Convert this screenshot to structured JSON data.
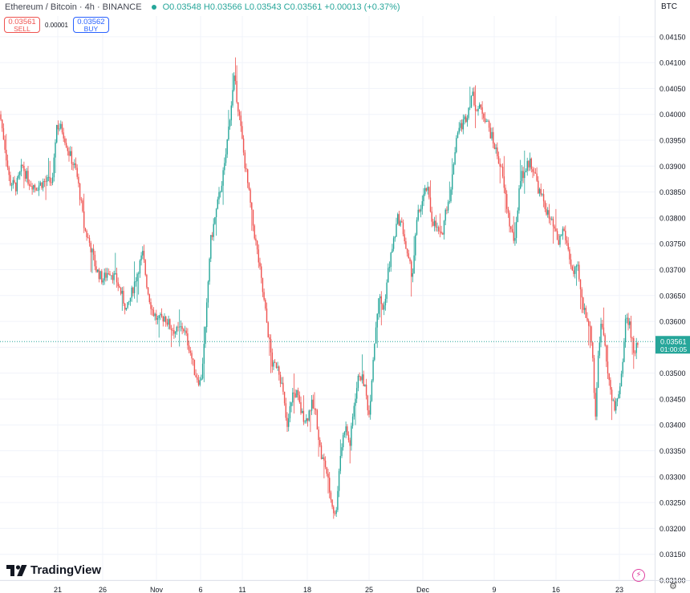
{
  "header": {
    "symbol": "Ethereum / Bitcoin · 4h · BINANCE",
    "ohlc": "O0.03548 H0.03566 L0.03543 C0.03561 +0.00013 (+0.37%)"
  },
  "trade": {
    "sell_price": "0.03561",
    "sell_label": "SELL",
    "spread": "0.00001",
    "buy_price": "0.03562",
    "buy_label": "BUY"
  },
  "currency": "BTC",
  "branding": {
    "logo_text": "TradingView"
  },
  "colors": {
    "up": "#26a69a",
    "down": "#ef5350",
    "last_price_bg": "#26a69a",
    "grid": "#f0f3fa"
  },
  "chart_data": {
    "type": "candlestick",
    "ylim": [
      0.031,
      0.0419
    ],
    "y_ticks": [
      "0.04150",
      "0.04100",
      "0.04050",
      "0.04000",
      "0.03950",
      "0.03900",
      "0.03850",
      "0.03800",
      "0.03750",
      "0.03700",
      "0.03650",
      "0.03600",
      "0.03550",
      "0.03500",
      "0.03450",
      "0.03400",
      "0.03350",
      "0.03300",
      "0.03250",
      "0.03200",
      "0.03150",
      "0.03100"
    ],
    "x_ticks": [
      "21",
      "26",
      "Nov",
      "6",
      "11",
      "18",
      "25",
      "Dec",
      "9",
      "16",
      "23"
    ],
    "last_price": "0.03561",
    "countdown": "01:00:05",
    "grid": true,
    "close_path": [
      [
        0,
        0.04
      ],
      [
        5,
        0.0395
      ],
      [
        12,
        0.0387
      ],
      [
        20,
        0.0386
      ],
      [
        28,
        0.039
      ],
      [
        36,
        0.0387
      ],
      [
        45,
        0.0386
      ],
      [
        55,
        0.0387
      ],
      [
        66,
        0.0387
      ],
      [
        70,
        0.0398
      ],
      [
        78,
        0.0397
      ],
      [
        85,
        0.0393
      ],
      [
        95,
        0.0389
      ],
      [
        100,
        0.0384
      ],
      [
        105,
        0.0378
      ],
      [
        112,
        0.0375
      ],
      [
        120,
        0.037
      ],
      [
        128,
        0.0368
      ],
      [
        136,
        0.037
      ],
      [
        145,
        0.0368
      ],
      [
        152,
        0.0365
      ],
      [
        158,
        0.0362
      ],
      [
        165,
        0.0366
      ],
      [
        172,
        0.037
      ],
      [
        178,
        0.0373
      ],
      [
        184,
        0.0366
      ],
      [
        190,
        0.0362
      ],
      [
        197,
        0.036
      ],
      [
        205,
        0.0361
      ],
      [
        212,
        0.0359
      ],
      [
        220,
        0.0358
      ],
      [
        228,
        0.0359
      ],
      [
        236,
        0.0355
      ],
      [
        243,
        0.035
      ],
      [
        250,
        0.0348
      ],
      [
        256,
        0.0358
      ],
      [
        262,
        0.0375
      ],
      [
        268,
        0.038
      ],
      [
        274,
        0.0385
      ],
      [
        280,
        0.039
      ],
      [
        286,
        0.0399
      ],
      [
        292,
        0.0407
      ],
      [
        298,
        0.04
      ],
      [
        304,
        0.0392
      ],
      [
        310,
        0.0385
      ],
      [
        316,
        0.0378
      ],
      [
        322,
        0.0372
      ],
      [
        328,
        0.0365
      ],
      [
        334,
        0.0358
      ],
      [
        340,
        0.0351
      ],
      [
        346,
        0.0352
      ],
      [
        352,
        0.0347
      ],
      [
        358,
        0.0339
      ],
      [
        364,
        0.0346
      ],
      [
        370,
        0.0346
      ],
      [
        376,
        0.0342
      ],
      [
        382,
        0.0341
      ],
      [
        388,
        0.0344
      ],
      [
        394,
        0.0342
      ],
      [
        400,
        0.0334
      ],
      [
        406,
        0.0332
      ],
      [
        412,
        0.0326
      ],
      [
        418,
        0.0322
      ],
      [
        424,
        0.0334
      ],
      [
        430,
        0.034
      ],
      [
        436,
        0.0336
      ],
      [
        442,
        0.0345
      ],
      [
        448,
        0.035
      ],
      [
        454,
        0.0348
      ],
      [
        460,
        0.0342
      ],
      [
        466,
        0.0355
      ],
      [
        472,
        0.0365
      ],
      [
        478,
        0.0362
      ],
      [
        484,
        0.037
      ],
      [
        490,
        0.0375
      ],
      [
        496,
        0.038
      ],
      [
        502,
        0.0378
      ],
      [
        508,
        0.0372
      ],
      [
        514,
        0.0369
      ],
      [
        520,
        0.038
      ],
      [
        526,
        0.0383
      ],
      [
        532,
        0.0386
      ],
      [
        538,
        0.038
      ],
      [
        544,
        0.0378
      ],
      [
        550,
        0.0376
      ],
      [
        556,
        0.0382
      ],
      [
        562,
        0.0385
      ],
      [
        566,
        0.0392
      ],
      [
        570,
        0.0397
      ],
      [
        576,
        0.0398
      ],
      [
        582,
        0.04
      ],
      [
        588,
        0.0404
      ],
      [
        594,
        0.0401
      ],
      [
        600,
        0.0401
      ],
      [
        606,
        0.0399
      ],
      [
        612,
        0.0396
      ],
      [
        618,
        0.0393
      ],
      [
        624,
        0.039
      ],
      [
        630,
        0.0384
      ],
      [
        636,
        0.0378
      ],
      [
        642,
        0.0375
      ],
      [
        648,
        0.0388
      ],
      [
        654,
        0.0389
      ],
      [
        660,
        0.0391
      ],
      [
        666,
        0.0389
      ],
      [
        672,
        0.0385
      ],
      [
        678,
        0.0383
      ],
      [
        684,
        0.038
      ],
      [
        690,
        0.0378
      ],
      [
        696,
        0.0375
      ],
      [
        702,
        0.0378
      ],
      [
        708,
        0.0374
      ],
      [
        714,
        0.0369
      ],
      [
        720,
        0.037
      ],
      [
        726,
        0.0363
      ],
      [
        732,
        0.0361
      ],
      [
        738,
        0.0356
      ],
      [
        742,
        0.0341
      ],
      [
        746,
        0.0355
      ],
      [
        750,
        0.036
      ],
      [
        754,
        0.0356
      ],
      [
        758,
        0.035
      ],
      [
        762,
        0.0345
      ],
      [
        766,
        0.0343
      ],
      [
        770,
        0.0346
      ],
      [
        774,
        0.0348
      ],
      [
        780,
        0.0361
      ],
      [
        784,
        0.036
      ],
      [
        790,
        0.0354
      ],
      [
        796,
        0.0356
      ]
    ]
  }
}
